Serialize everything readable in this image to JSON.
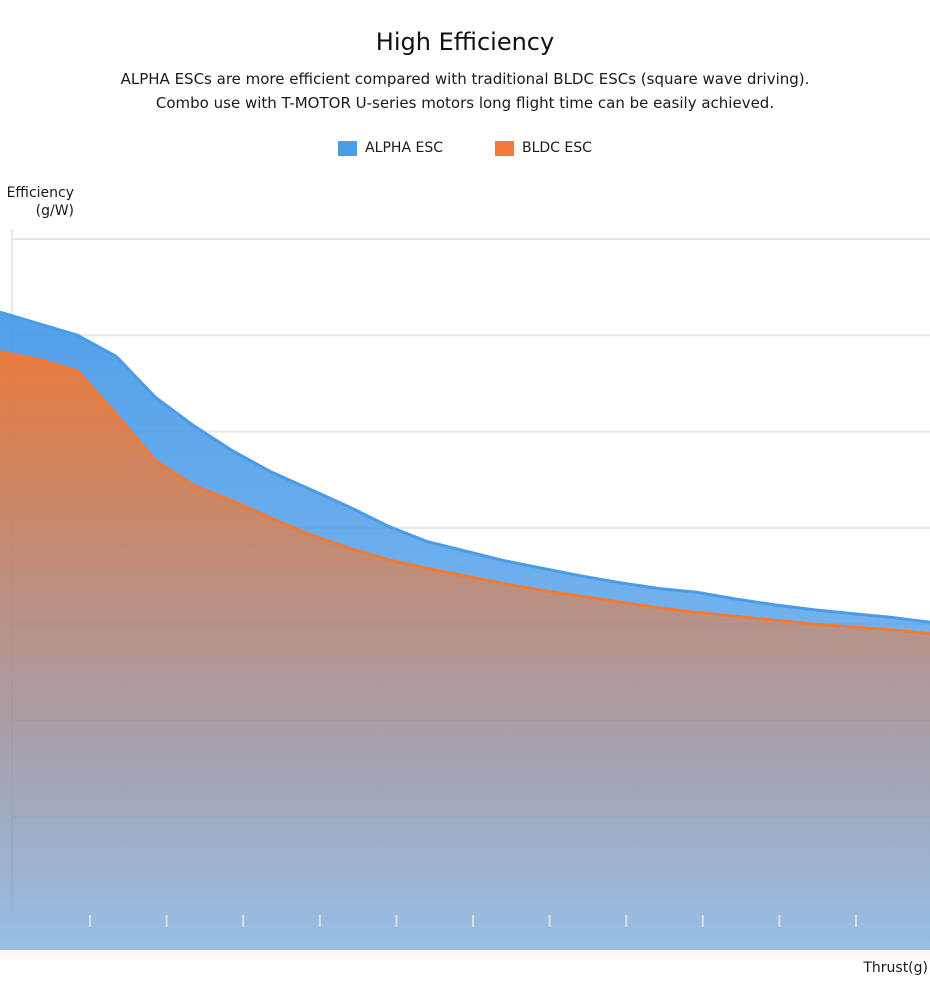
{
  "page": {
    "title": "High Efficiency",
    "subtitle_line1": "ALPHA ESCs are more efficient compared with traditional BLDC ESCs (square wave driving).",
    "subtitle_line2": "Combo use with T-MOTOR U-series motors long flight time can be easily achieved."
  },
  "colors": {
    "alpha": "#4a9be8",
    "bldc": "#f07a36",
    "grid": "#e6e6e6"
  },
  "chart_data": {
    "type": "area",
    "title": "High Efficiency",
    "xlabel": "Thrust(g)",
    "ylabel": "Efficiency (g/W)",
    "ylabel_line1": "Efficiency",
    "ylabel_line2": "(g/W)",
    "grid": true,
    "legend_position": "top-center",
    "x_tick_count": 11,
    "x": [
      0,
      1,
      2,
      3,
      4,
      5,
      6,
      7,
      8,
      9,
      10,
      11,
      12,
      13,
      14,
      15,
      16,
      17,
      18,
      19,
      20,
      21,
      22,
      23,
      24
    ],
    "ylim": [
      0,
      7
    ],
    "series": [
      {
        "name": "ALPHA ESC",
        "values": [
          6.24,
          6.12,
          6.0,
          5.78,
          5.36,
          5.06,
          4.8,
          4.58,
          4.4,
          4.22,
          4.02,
          3.86,
          3.76,
          3.66,
          3.58,
          3.5,
          3.43,
          3.37,
          3.33,
          3.26,
          3.2,
          3.15,
          3.11,
          3.07,
          3.02
        ]
      },
      {
        "name": "BLDC ESC",
        "values": [
          5.83,
          5.75,
          5.63,
          5.18,
          4.7,
          4.44,
          4.28,
          4.1,
          3.93,
          3.79,
          3.67,
          3.58,
          3.5,
          3.42,
          3.35,
          3.29,
          3.23,
          3.17,
          3.12,
          3.08,
          3.04,
          3.0,
          2.97,
          2.94,
          2.9
        ]
      }
    ]
  }
}
